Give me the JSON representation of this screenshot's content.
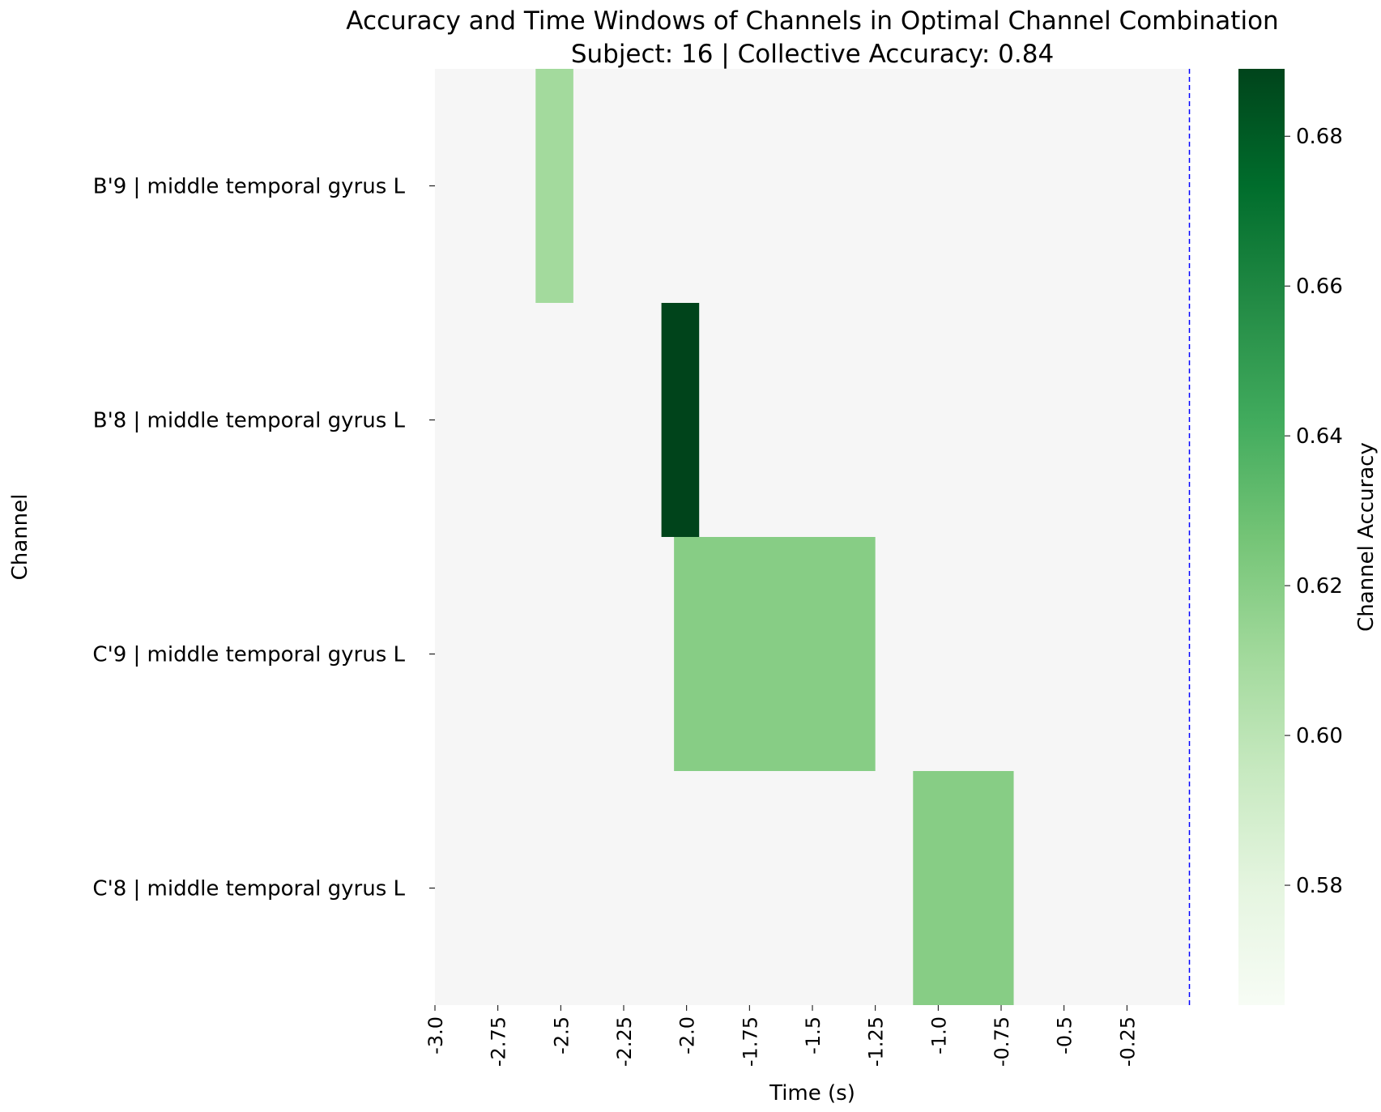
{
  "chart_data": {
    "type": "heatmap",
    "title": "Accuracy and Time Windows of Channels in Optimal Channel Combination",
    "subtitle": "Subject: 16 | Collective Accuracy: 0.84",
    "xlabel": "Time (s)",
    "ylabel": "Channel",
    "xlim": [
      -3.0,
      0.0
    ],
    "x_ticks": [
      -3.0,
      -2.75,
      -2.5,
      -2.25,
      -2.0,
      -1.75,
      -1.5,
      -1.25,
      -1.0,
      -0.75,
      -0.5,
      -0.25
    ],
    "x_tick_labels": [
      "-3.0",
      "-2.75",
      "-2.5",
      "-2.25",
      "-2.0",
      "-1.75",
      "-1.5",
      "-1.25",
      "-1.0",
      "-0.75",
      "-0.5",
      "-0.25"
    ],
    "channels": [
      "B'9 | middle temporal gyrus L",
      "B'8 | middle temporal gyrus L",
      "C'9 | middle temporal gyrus L",
      "C'8 | middle temporal gyrus L"
    ],
    "windows": [
      {
        "channel": "B'9 | middle temporal gyrus L",
        "start": -2.6,
        "end": -2.45,
        "accuracy": 0.61
      },
      {
        "channel": "B'8 | middle temporal gyrus L",
        "start": -2.1,
        "end": -1.95,
        "accuracy": 0.69
      },
      {
        "channel": "C'9 | middle temporal gyrus L",
        "start": -2.05,
        "end": -1.25,
        "accuracy": 0.62
      },
      {
        "channel": "C'8 | middle temporal gyrus L",
        "start": -1.1,
        "end": -0.7,
        "accuracy": 0.62
      }
    ],
    "background_value": "NaN",
    "background_color": "#f6f6f6",
    "event_line": {
      "x": 0.0,
      "color": "#0000ff",
      "style": "dashed"
    },
    "colorbar": {
      "label": "Channel Accuracy",
      "colormap": "Greens",
      "vmin": 0.564,
      "vmax": 0.689,
      "ticks": [
        0.58,
        0.6,
        0.62,
        0.64,
        0.66,
        0.68
      ],
      "tick_labels": [
        "0.58",
        "0.60",
        "0.62",
        "0.64",
        "0.66",
        "0.68"
      ]
    },
    "grid": false,
    "legend": "none"
  }
}
